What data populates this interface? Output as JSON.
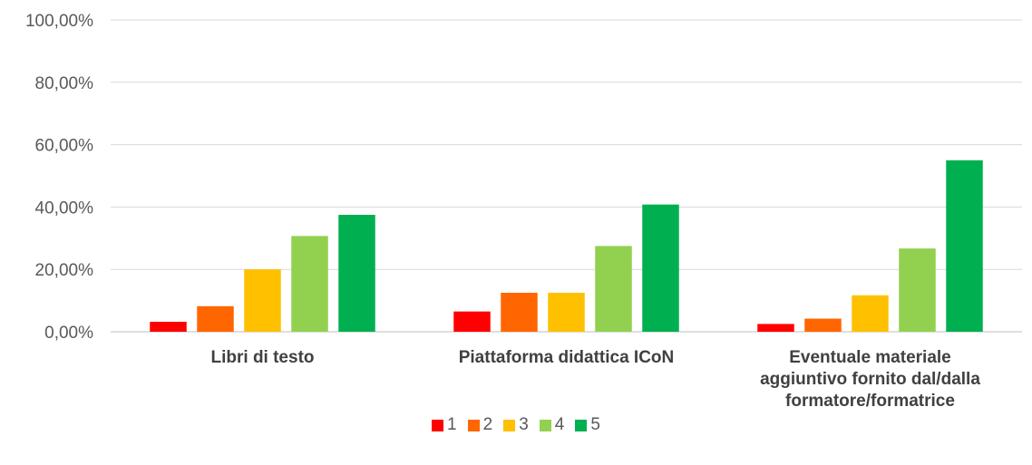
{
  "chart_data": {
    "type": "bar",
    "title": "",
    "xlabel": "",
    "ylabel": "",
    "ylim": [
      0,
      100
    ],
    "yticks": [
      "0,00%",
      "20,00%",
      "40,00%",
      "60,00%",
      "80,00%",
      "100,00%"
    ],
    "categories": [
      [
        "Libri di testo"
      ],
      [
        "Piattaforma didattica ICoN"
      ],
      [
        "Eventuale materiale",
        "aggiuntivo fornito dal/dalla",
        "formatore/formatrice"
      ]
    ],
    "series": [
      {
        "name": "1",
        "color": "#FF0000",
        "values": [
          3.2,
          6.5,
          2.5
        ]
      },
      {
        "name": "2",
        "color": "#FF6600",
        "values": [
          8.2,
          12.5,
          4.2
        ]
      },
      {
        "name": "3",
        "color": "#FFC000",
        "values": [
          20.0,
          12.5,
          11.7
        ]
      },
      {
        "name": "4",
        "color": "#92D050",
        "values": [
          30.7,
          27.5,
          26.7
        ]
      },
      {
        "name": "5",
        "color": "#00B050",
        "values": [
          37.5,
          40.8,
          55.0
        ]
      }
    ],
    "grid": true,
    "legend_position": "bottom"
  }
}
